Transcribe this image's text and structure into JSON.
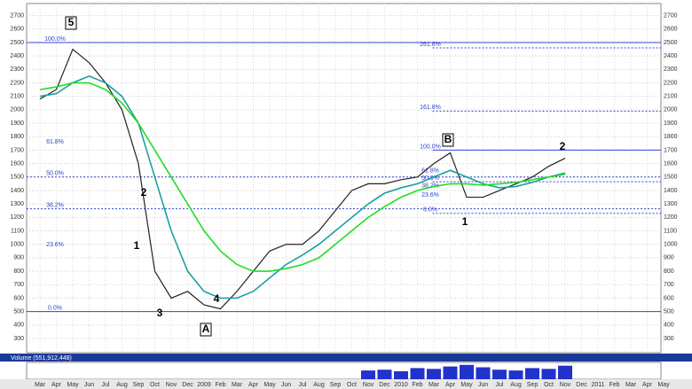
{
  "chart_data": {
    "type": "line",
    "categories": [
      "Mar",
      "Apr",
      "May",
      "Jun",
      "Jul",
      "Aug",
      "Sep",
      "Oct",
      "Nov",
      "Dec",
      "2009",
      "Feb",
      "Mar",
      "Apr",
      "May",
      "Jun",
      "Jul",
      "Aug",
      "Sep",
      "Oct",
      "Nov",
      "Dec",
      "2010",
      "Feb",
      "Mar",
      "Apr",
      "May",
      "Jun",
      "Jul",
      "Aug",
      "Sep",
      "Oct",
      "Nov",
      "Dec",
      "2011",
      "Feb",
      "Mar",
      "Apr",
      "May"
    ],
    "series": [
      {
        "color": "#222222",
        "values": [
          2080,
          2150,
          2450,
          2350,
          2200,
          2000,
          1600,
          800,
          600,
          650,
          550,
          520,
          650,
          800,
          950,
          1000,
          1000,
          1100,
          1250,
          1400,
          1450,
          1450,
          1480,
          1500,
          1600,
          1680,
          1350,
          1350,
          1400,
          1450,
          1500,
          1580,
          1640,
          null,
          null,
          null,
          null,
          null,
          null
        ]
      },
      {
        "color": "#19a0a0",
        "values": [
          2100,
          2120,
          2200,
          2250,
          2200,
          2100,
          1900,
          1500,
          1100,
          800,
          650,
          600,
          600,
          650,
          750,
          850,
          920,
          1000,
          1100,
          1200,
          1300,
          1380,
          1420,
          1450,
          1500,
          1550,
          1500,
          1450,
          1420,
          1430,
          1460,
          1500,
          1530,
          null,
          null,
          null,
          null,
          null,
          null
        ]
      },
      {
        "color": "#22dd22",
        "values": [
          2150,
          2170,
          2200,
          2200,
          2150,
          2050,
          1900,
          1700,
          1500,
          1300,
          1100,
          950,
          850,
          800,
          800,
          820,
          850,
          900,
          1000,
          1100,
          1200,
          1280,
          1350,
          1400,
          1430,
          1450,
          1450,
          1440,
          1450,
          1460,
          1480,
          1500,
          1520,
          null,
          null,
          null,
          null,
          null,
          null
        ]
      }
    ],
    "ylim": [
      300,
      2700
    ],
    "yticks": [
      300,
      400,
      500,
      600,
      700,
      800,
      900,
      1000,
      1100,
      1200,
      1300,
      1400,
      1500,
      1600,
      1700,
      1800,
      1900,
      2000,
      2100,
      2200,
      2300,
      2400,
      2500,
      2600,
      2700
    ],
    "grid": true,
    "fib_left": [
      {
        "label": "100.0%",
        "value": 2500,
        "line": "solid"
      },
      {
        "label": "61.8%",
        "value": 1736,
        "line": "none"
      },
      {
        "label": "50.0%",
        "value": 1500,
        "line": "dotted"
      },
      {
        "label": "38.2%",
        "value": 1264,
        "line": "dotted"
      },
      {
        "label": "23.6%",
        "value": 972,
        "line": "none"
      },
      {
        "label": "0.0%",
        "value": 500,
        "line": "solid"
      }
    ],
    "fib_right": [
      {
        "label": "261.8%",
        "value": 2460,
        "line": "dotted"
      },
      {
        "label": "161.8%",
        "value": 1990,
        "line": "dotted"
      },
      {
        "label": "100.0%",
        "value": 1700,
        "line": "solid"
      },
      {
        "label": "61.8%",
        "value": 1520,
        "line": "none"
      },
      {
        "label": "50.0%",
        "value": 1465,
        "line": "dotted"
      },
      {
        "label": "38.2%",
        "value": 1410,
        "line": "none"
      },
      {
        "label": "23.6%",
        "value": 1341,
        "line": "none"
      },
      {
        "label": "0.0%",
        "value": 1230,
        "line": "dotted"
      }
    ],
    "annotations": [
      "5",
      "2",
      "1",
      "3",
      "4",
      "A",
      "B",
      "1",
      "2"
    ],
    "volume": {
      "title": "Volume (551,912,448)",
      "color": "#2233cc",
      "ylim": [
        0,
        100
      ],
      "values": [
        null,
        null,
        null,
        null,
        null,
        null,
        null,
        null,
        null,
        null,
        null,
        null,
        null,
        null,
        null,
        null,
        null,
        null,
        null,
        null,
        55,
        60,
        50,
        70,
        65,
        80,
        90,
        75,
        60,
        55,
        70,
        65,
        85,
        null,
        null,
        null,
        null,
        null,
        null
      ]
    }
  }
}
